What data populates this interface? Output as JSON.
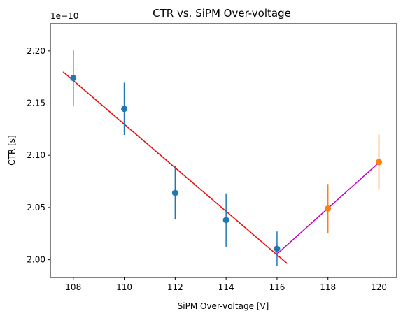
{
  "chart_data": {
    "type": "scatter",
    "title": "CTR vs. SiPM Over-voltage",
    "xlabel": "SiPM Over-voltage [V]",
    "ylabel": "CTR [s]",
    "y_offset_label": "1e−10",
    "xlim": [
      107.1,
      120.7
    ],
    "ylim": [
      1.983,
      2.226
    ],
    "xticks": [
      108,
      110,
      112,
      114,
      116,
      118,
      120
    ],
    "xtick_labels": [
      "108",
      "110",
      "112",
      "114",
      "116",
      "118",
      "120"
    ],
    "yticks": [
      2.0,
      2.05,
      2.1,
      2.15,
      2.2
    ],
    "ytick_labels": [
      "2.00",
      "2.05",
      "2.10",
      "2.15",
      "2.20"
    ],
    "grid": false,
    "series": [
      {
        "color": "#1f77b4",
        "x": [
          108,
          110,
          112,
          114,
          116
        ],
        "y": [
          2.174,
          2.1445,
          2.064,
          2.038,
          2.0105
        ],
        "yerr": [
          0.0265,
          0.025,
          0.0255,
          0.0255,
          0.0165
        ]
      },
      {
        "color": "#ff7f0e",
        "x": [
          118,
          120
        ],
        "y": [
          2.049,
          2.0935
        ],
        "yerr": [
          0.0235,
          0.0265
        ]
      }
    ],
    "fit_lines": [
      {
        "color": "#ff0000",
        "x": [
          107.6,
          116.4
        ],
        "y": [
          2.1799,
          1.9963
        ]
      },
      {
        "color": "#bf00bf",
        "x": [
          116.0,
          120.0
        ],
        "y": [
          2.0055,
          2.093
        ]
      }
    ]
  }
}
